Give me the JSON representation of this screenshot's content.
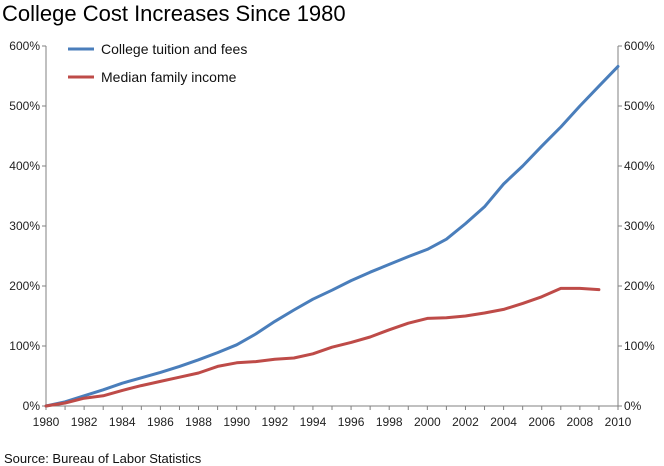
{
  "chart_data": {
    "type": "line",
    "title": "College Cost Increases Since 1980",
    "source": "Source: Bureau of Labor Statistics",
    "xlim": [
      1980,
      2010
    ],
    "ylim": [
      0,
      600
    ],
    "x_ticks": [
      1980,
      1982,
      1984,
      1986,
      1988,
      1990,
      1992,
      1994,
      1996,
      1998,
      2000,
      2002,
      2004,
      2006,
      2008,
      2010
    ],
    "y_ticks": [
      0,
      100,
      200,
      300,
      400,
      500,
      600
    ],
    "y_tick_labels": [
      "0%",
      "100%",
      "200%",
      "300%",
      "400%",
      "500%",
      "600%"
    ],
    "y_axis_sides": "left-and-right",
    "grid": false,
    "legend_position": "top-left",
    "series": [
      {
        "name": "College tuition and fees",
        "color": "#4a7ebb",
        "x": [
          1980,
          1981,
          1982,
          1983,
          1984,
          1985,
          1986,
          1987,
          1988,
          1989,
          1990,
          1991,
          1992,
          1993,
          1994,
          1995,
          1996,
          1997,
          1998,
          1999,
          2000,
          2001,
          2002,
          2003,
          2004,
          2005,
          2006,
          2007,
          2008,
          2009,
          2010
        ],
        "values": [
          0,
          7,
          17,
          27,
          38,
          47,
          56,
          66,
          77,
          89,
          102,
          120,
          141,
          160,
          178,
          193,
          209,
          223,
          236,
          249,
          261,
          278,
          304,
          332,
          370,
          400,
          433,
          465,
          500,
          533,
          566
        ]
      },
      {
        "name": "Median family income",
        "color": "#be4b48",
        "x": [
          1980,
          1981,
          1982,
          1983,
          1984,
          1985,
          1986,
          1987,
          1988,
          1989,
          1990,
          1991,
          1992,
          1993,
          1994,
          1995,
          1996,
          1997,
          1998,
          1999,
          2000,
          2001,
          2002,
          2003,
          2004,
          2005,
          2006,
          2007,
          2008,
          2009
        ],
        "values": [
          0,
          5,
          13,
          17,
          26,
          34,
          41,
          48,
          55,
          66,
          72,
          74,
          78,
          80,
          87,
          98,
          106,
          115,
          127,
          138,
          146,
          147,
          150,
          155,
          161,
          171,
          182,
          196,
          196,
          194
        ]
      }
    ]
  }
}
